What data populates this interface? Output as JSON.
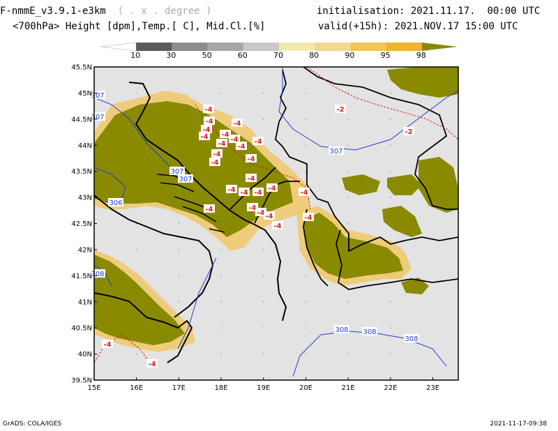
{
  "header": {
    "model": "F-nmmE_v3.9.1-e3km",
    "projection_hint": "( . x . degree )",
    "fields": "<700hPa> Height [dpm],Temp.[ C], Mid.Cl.[%]",
    "initialisation_label": "initialisation:",
    "initialisation_value": "2021.11.17.  00:00 UTC",
    "valid_label": "valid(+15h):",
    "valid_value": "2021.NOV.17 15:00 UTC"
  },
  "colorbar": {
    "levels": [
      "10",
      "30",
      "50",
      "60",
      "70",
      "80",
      "90",
      "95",
      "98"
    ],
    "colors": [
      "#ffffff",
      "#5a5a5a",
      "#8c8c8c",
      "#a6a6a6",
      "#c8c8c8",
      "#f0eab0",
      "#f2d890",
      "#f2c45a",
      "#eeb330",
      "#8a8a00"
    ]
  },
  "map": {
    "colors": {
      "background": "#e3e3e3",
      "cloud_dense": "#8a8a00",
      "cloud_edge": "#f2c45a",
      "coast_border": "#000000",
      "height_contour": "#1f3fcc",
      "temp_contour": "#dd2222"
    },
    "lat_labels": [
      "45.5N",
      "45N",
      "44.5N",
      "44N",
      "43.5N",
      "43N",
      "42.5N",
      "42N",
      "41.5N",
      "41N",
      "40.5N",
      "40N",
      "39.5N"
    ],
    "lon_labels": [
      "15E",
      "16E",
      "17E",
      "18E",
      "19E",
      "20E",
      "21E",
      "22E",
      "23E"
    ],
    "height_labels": [
      "307",
      "307",
      "307",
      "307",
      "307",
      "306",
      "308",
      "308",
      "308",
      "308"
    ],
    "temp_labels": [
      "-2",
      "-2",
      "-4",
      "-4",
      "-4",
      "-4",
      "-4",
      "-4",
      "-4",
      "-4",
      "-4",
      "-4",
      "-4",
      "-4",
      "-4",
      "-4",
      "-4",
      "-4",
      "-4",
      "-4",
      "-4",
      "-4",
      "-4",
      "-4",
      "-4",
      "-4",
      "-4",
      "-4",
      "-4"
    ]
  },
  "footer": {
    "left": "GrADS: COLA/IGES",
    "right": "2021-11-17-09:38"
  }
}
